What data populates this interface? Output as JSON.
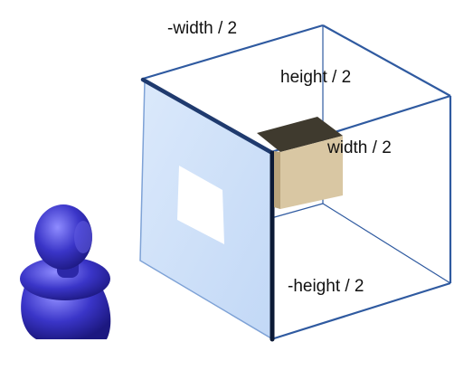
{
  "labels": {
    "neg_width_half": "-width / 2",
    "height_half": "height / 2",
    "width_half": "width / 2",
    "neg_height_half": "-height / 2"
  },
  "colors": {
    "frustum_edge": "#2f5aa0",
    "near_plane_fill": "#cfe2fa",
    "near_plane_border": "#7ea2d6",
    "near_plane_thick_edge": "#14284d",
    "opening": "#ffffff",
    "box_top": "#3f3a2e",
    "box_front": "#d9c7a3",
    "box_side": "#cdb991",
    "viewer_figure": "#3a35c8"
  },
  "icons": {
    "viewer": "person-icon",
    "object": "box-icon"
  }
}
